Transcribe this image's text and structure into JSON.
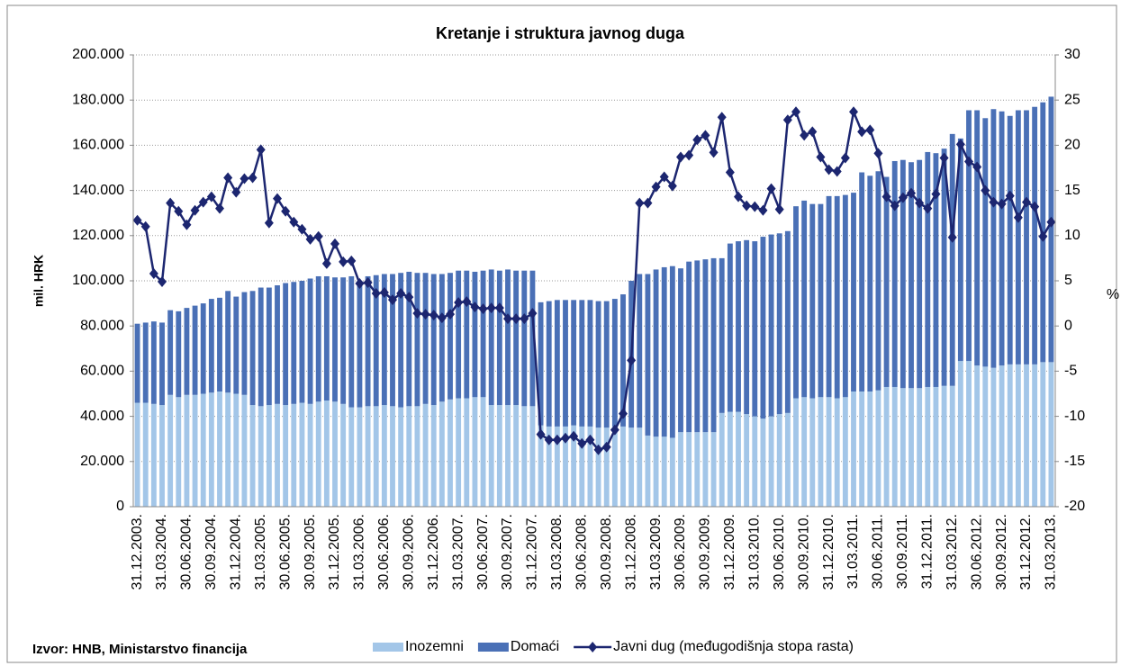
{
  "chart_data": {
    "type": "bar",
    "stacked": true,
    "title": "Kretanje i struktura javnog duga",
    "y_label": "mil. HRK",
    "y2_label": "%",
    "source": "Izvor: HNB, Ministarstvo financija",
    "categories": [
      "31.12.2003.",
      null,
      null,
      "31.03.2004.",
      null,
      null,
      "30.06.2004.",
      null,
      null,
      "30.09.2004.",
      null,
      null,
      "31.12.2004.",
      null,
      null,
      "31.03.2005.",
      null,
      null,
      "30.06.2005.",
      null,
      null,
      "30.09.2005.",
      null,
      null,
      "31.12.2005.",
      null,
      null,
      "31.03.2006.",
      null,
      null,
      "30.06.2006.",
      null,
      null,
      "30.09.2006.",
      null,
      null,
      "31.12.2006.",
      null,
      null,
      "31.03.2007.",
      null,
      null,
      "30.06.2007.",
      null,
      null,
      "30.09.2007.",
      null,
      null,
      "31.12.2007.",
      null,
      null,
      "31.03.2008.",
      null,
      null,
      "30.06.2008.",
      null,
      null,
      "30.09.2008.",
      null,
      null,
      "31.12.2008.",
      null,
      null,
      "31.03.2009.",
      null,
      null,
      "30.06.2009.",
      null,
      null,
      "30.09.2009.",
      null,
      null,
      "31.12.2009.",
      null,
      null,
      "31.03.2010.",
      null,
      null,
      "30.06.2010.",
      null,
      null,
      "30.09.2010.",
      null,
      null,
      "31.12.2010.",
      null,
      null,
      "31.03.2011.",
      null,
      null,
      "30.06.2011.",
      null,
      null,
      "30.09.2011.",
      null,
      null,
      "31.12.2011.",
      null,
      null,
      "31.03.2012.",
      null,
      null,
      "30.06.2012.",
      null,
      null,
      "30.09.2012.",
      null,
      null,
      "31.12.2012.",
      null,
      null,
      "31.03.2013."
    ],
    "series": [
      {
        "name": "Inozemni",
        "color": "#a3c6e8",
        "values": [
          46000,
          46000,
          45500,
          45000,
          49500,
          48500,
          49500,
          49500,
          50000,
          50500,
          51000,
          50500,
          50000,
          49500,
          45000,
          44500,
          45000,
          45500,
          45000,
          45500,
          46000,
          45500,
          46500,
          47000,
          46500,
          45500,
          44000,
          44000,
          44500,
          44500,
          45000,
          44500,
          44000,
          44500,
          44500,
          45500,
          45000,
          46500,
          47500,
          48000,
          48000,
          48500,
          48500,
          45000,
          45000,
          45000,
          45000,
          44500,
          44500,
          36000,
          35500,
          35500,
          35500,
          36000,
          35500,
          35500,
          35000,
          35000,
          35500,
          35500,
          35000,
          35000,
          31500,
          31000,
          31000,
          30500,
          33000,
          33000,
          33000,
          33000,
          33000,
          41500,
          42000,
          42000,
          41000,
          40000,
          39000,
          40000,
          41000,
          41500,
          48000,
          48500,
          48000,
          48500,
          48500,
          48000,
          48500,
          51000,
          51000,
          51000,
          51500,
          53000,
          53000,
          52500,
          52500,
          52500,
          53000,
          53000,
          53500,
          53500,
          64500,
          64500,
          62500,
          62000,
          61500,
          62500,
          63000,
          63000,
          63000,
          63000,
          64000,
          64000
        ]
      },
      {
        "name": "Domaći",
        "color": "#4a70b6",
        "values": [
          35000,
          35500,
          36500,
          36500,
          37500,
          38000,
          38500,
          39500,
          40000,
          41500,
          41500,
          45000,
          43000,
          45500,
          50500,
          52500,
          52000,
          52500,
          54000,
          54000,
          54000,
          55500,
          55500,
          55000,
          55000,
          56000,
          58000,
          56000,
          57500,
          58000,
          58000,
          58500,
          59500,
          59500,
          59000,
          58000,
          58000,
          56500,
          56000,
          56500,
          56500,
          55500,
          56000,
          60000,
          59500,
          60000,
          59500,
          60000,
          60000,
          54500,
          55500,
          56000,
          56000,
          55500,
          56000,
          56000,
          56000,
          56000,
          56500,
          58500,
          65000,
          68000,
          71500,
          74000,
          75000,
          76000,
          72500,
          75500,
          76000,
          76500,
          77000,
          68500,
          74500,
          75500,
          77000,
          77500,
          80500,
          80500,
          80000,
          80500,
          85000,
          87000,
          86000,
          85500,
          89000,
          89500,
          89500,
          88000,
          97000,
          95500,
          97000,
          93000,
          100000,
          101000,
          100000,
          101000,
          104000,
          103500,
          105000,
          111500,
          98500,
          111000,
          113000,
          110000,
          114500,
          112500,
          110000,
          112500,
          112500,
          114000,
          115000,
          117500
        ]
      },
      {
        "name": "Javni dug (međugodišnja stopa rasta)",
        "color": "#1c2670",
        "type": "line",
        "axis": "y2",
        "values": [
          11.7,
          11.0,
          5.8,
          4.9,
          13.6,
          12.7,
          11.2,
          12.8,
          13.7,
          14.3,
          13.0,
          16.4,
          14.8,
          16.3,
          16.4,
          19.5,
          11.4,
          14.1,
          12.7,
          11.5,
          10.7,
          9.6,
          9.9,
          6.9,
          9.1,
          7.1,
          7.2,
          4.7,
          4.8,
          3.6,
          3.7,
          2.9,
          3.6,
          3.2,
          1.4,
          1.3,
          1.2,
          0.9,
          1.3,
          2.6,
          2.7,
          2.1,
          1.9,
          2.0,
          2.0,
          0.8,
          0.8,
          0.8,
          1.4,
          -12.0,
          -12.6,
          -12.6,
          -12.4,
          -12.2,
          -13.0,
          -12.6,
          -13.7,
          -13.4,
          -11.5,
          -9.7,
          -3.8,
          13.6,
          13.6,
          15.4,
          16.5,
          15.5,
          18.7,
          18.9,
          20.6,
          21.1,
          19.2,
          23.1,
          17.0,
          14.3,
          13.3,
          13.2,
          12.8,
          15.2,
          12.9,
          22.8,
          23.7,
          21.1,
          21.5,
          18.7,
          17.3,
          17.1,
          18.6,
          23.7,
          21.5,
          21.7,
          19.1,
          14.3,
          13.3,
          14.2,
          14.7,
          13.6,
          13.0,
          14.6,
          18.6,
          9.8,
          20.1,
          18.2,
          17.6,
          15.0,
          13.7,
          13.5,
          14.4,
          12.0,
          13.7,
          13.2,
          9.9,
          11.5
        ]
      }
    ],
    "ylim": [
      0,
      200000
    ],
    "yticks": [
      0,
      {
        "value": 20000,
        "label": "20.000"
      },
      {
        "value": 40000,
        "label": "40.000"
      },
      {
        "value": 60000,
        "label": "60.000"
      },
      {
        "value": 80000,
        "label": "80.000"
      },
      {
        "value": 100000,
        "label": "100.000"
      },
      {
        "value": 120000,
        "label": "120.000"
      },
      {
        "value": 140000,
        "label": "140.000"
      },
      {
        "value": 160000,
        "label": "160.000"
      },
      {
        "value": 180000,
        "label": "180.000"
      },
      {
        "value": 200000,
        "label": "200.000"
      }
    ],
    "y2lim": [
      -20,
      30
    ],
    "y2ticks": [
      -20,
      -15,
      -10,
      -5,
      0,
      5,
      10,
      15,
      20,
      25,
      30
    ],
    "grid": true
  }
}
